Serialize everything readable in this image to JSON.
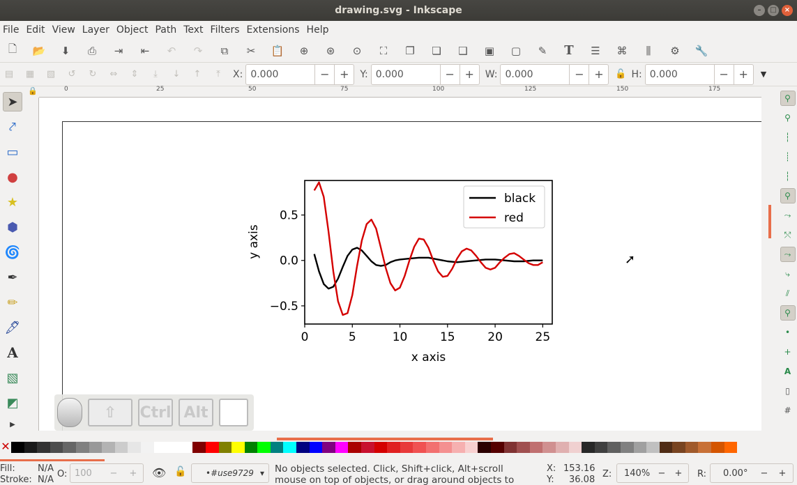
{
  "window": {
    "title": "drawing.svg - Inkscape"
  },
  "menu": [
    "File",
    "Edit",
    "View",
    "Layer",
    "Object",
    "Path",
    "Text",
    "Filters",
    "Extensions",
    "Help"
  ],
  "toolbar2": {
    "x_label": "X:",
    "x_value": "0.000",
    "y_label": "Y:",
    "y_value": "0.000",
    "w_label": "W:",
    "w_value": "0.000",
    "h_label": "H:",
    "h_value": "0.000",
    "minus": "−",
    "plus": "+"
  },
  "ruler": {
    "top_ticks": [
      "0",
      "25",
      "50",
      "75",
      "100",
      "125",
      "150",
      "175"
    ]
  },
  "chart_data": {
    "type": "line",
    "xlabel": "x axis",
    "ylabel": "y axis",
    "xlim": [
      0,
      26
    ],
    "ylim": [
      -0.7,
      0.88
    ],
    "xticks": [
      "0",
      "5",
      "10",
      "15",
      "20",
      "25"
    ],
    "yticks": [
      "0.5",
      "0.0",
      "−0.5"
    ],
    "legend_position": "top-right",
    "series": [
      {
        "name": "black",
        "color": "#000000",
        "x": [
          1,
          1.5,
          2,
          2.5,
          3,
          3.5,
          4,
          4.5,
          5,
          5.5,
          6,
          6.5,
          7,
          7.5,
          8,
          8.5,
          9,
          9.5,
          10,
          11,
          12,
          13,
          14,
          15,
          16,
          17,
          18,
          19,
          20,
          21,
          22,
          23,
          24,
          25
        ],
        "y": [
          0.07,
          -0.12,
          -0.26,
          -0.31,
          -0.29,
          -0.2,
          -0.07,
          0.05,
          0.12,
          0.14,
          0.11,
          0.05,
          -0.01,
          -0.05,
          -0.06,
          -0.05,
          -0.02,
          0.0,
          0.01,
          0.02,
          0.03,
          0.03,
          0.01,
          -0.01,
          -0.02,
          -0.01,
          0.0,
          0.01,
          0.01,
          0.0,
          -0.01,
          -0.01,
          0.0,
          0.0
        ]
      },
      {
        "name": "red",
        "color": "#d40000",
        "x": [
          1,
          1.5,
          2,
          2.5,
          3,
          3.5,
          4,
          4.5,
          5,
          5.5,
          6,
          6.5,
          7,
          7.5,
          8,
          8.5,
          9,
          9.5,
          10,
          10.5,
          11,
          11.5,
          12,
          12.5,
          13,
          13.5,
          14,
          14.5,
          15,
          15.5,
          16,
          16.5,
          17,
          17.5,
          18,
          18.5,
          19,
          19.5,
          20,
          20.5,
          21,
          21.5,
          22,
          22.5,
          23,
          23.5,
          24,
          24.5,
          25
        ],
        "y": [
          0.77,
          0.86,
          0.7,
          0.32,
          -0.12,
          -0.45,
          -0.6,
          -0.58,
          -0.38,
          -0.06,
          0.22,
          0.4,
          0.45,
          0.35,
          0.14,
          -0.08,
          -0.25,
          -0.33,
          -0.3,
          -0.17,
          0.0,
          0.15,
          0.24,
          0.23,
          0.14,
          0.0,
          -0.12,
          -0.18,
          -0.17,
          -0.09,
          0.02,
          0.1,
          0.13,
          0.11,
          0.05,
          -0.02,
          -0.08,
          -0.1,
          -0.08,
          -0.02,
          0.03,
          0.07,
          0.08,
          0.05,
          0.01,
          -0.03,
          -0.05,
          -0.05,
          -0.02
        ]
      }
    ]
  },
  "status": {
    "fill_label": "Fill:",
    "fill_value": "N/A",
    "stroke_label": "Stroke:",
    "stroke_value": "N/A",
    "opacity_label": "O:",
    "opacity_value": "100",
    "object_id": "•#use9729",
    "message": "No objects selected. Click, Shift+click, Alt+scroll mouse on top of objects, or drag around objects to select.",
    "x_label": "X:",
    "x_value": "153.16",
    "y_label": "Y:",
    "y_value": "36.08",
    "zoom_label": "Z:",
    "zoom_value": "140%",
    "rotate_label": "R:",
    "rotate_value": "0.00°"
  },
  "keys": {
    "ctrl": "Ctrl",
    "alt": "Alt"
  },
  "palette": [
    "#000000",
    "#1a1a1a",
    "#333333",
    "#4d4d4d",
    "#666666",
    "#808080",
    "#999999",
    "#b3b3b3",
    "#cccccc",
    "#e6e6e6",
    "#f2f2f2",
    "#ffffff",
    "#ffffff",
    "#ffffff",
    "#800000",
    "#ff0000",
    "#808000",
    "#ffff00",
    "#008000",
    "#00ff00",
    "#008080",
    "#00ffff",
    "#000080",
    "#0000ff",
    "#800080",
    "#ff00ff",
    "#aa0000",
    "#c8102e",
    "#d40000",
    "#e02020",
    "#e83a3a",
    "#f05252",
    "#f27070",
    "#f49090",
    "#f6b0b0",
    "#f8d0d0",
    "#2b0000",
    "#550000",
    "#803333",
    "#a05050",
    "#c07070",
    "#d09090",
    "#e0b0b0",
    "#f0d0d0",
    "#282828",
    "#404040",
    "#606060",
    "#808080",
    "#a0a0a0",
    "#c0c0c0",
    "#502d16",
    "#784421",
    "#a05a2c",
    "#c87137",
    "#d45500",
    "#ff6600"
  ]
}
